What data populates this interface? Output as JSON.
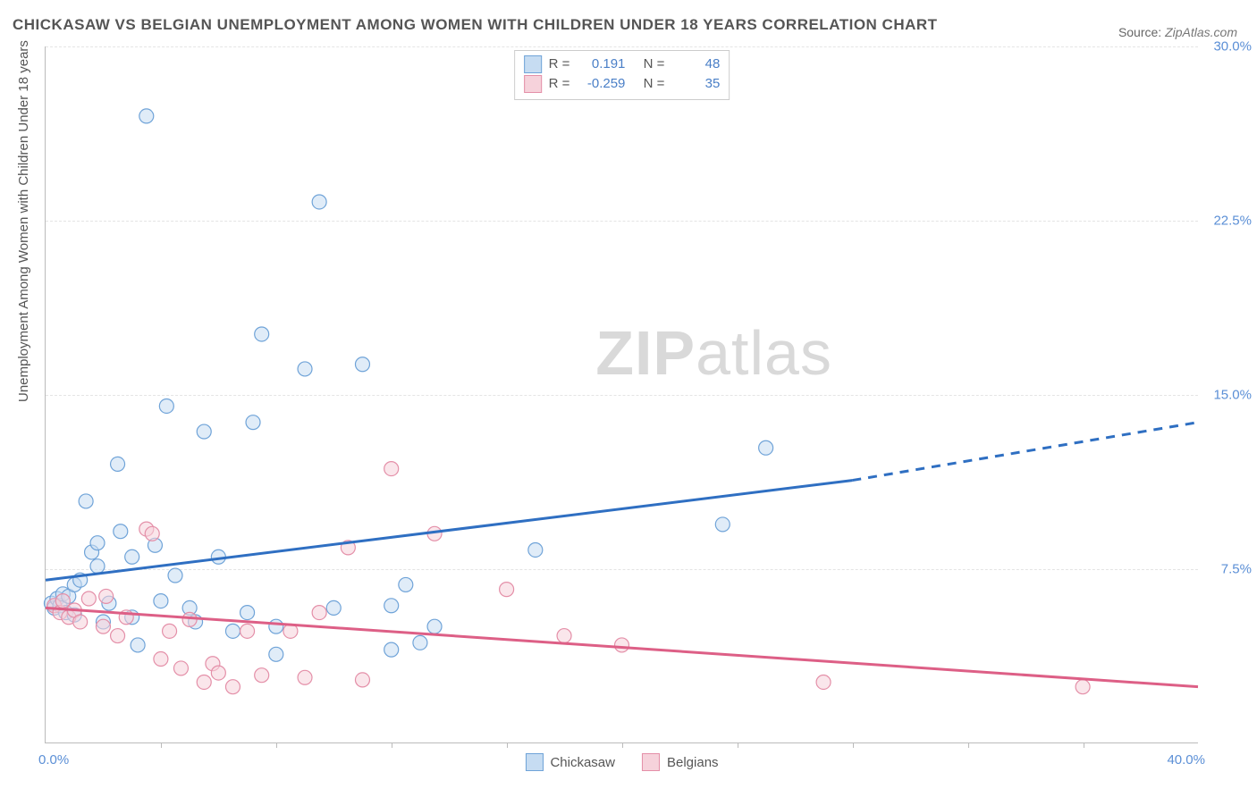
{
  "title": "CHICKASAW VS BELGIAN UNEMPLOYMENT AMONG WOMEN WITH CHILDREN UNDER 18 YEARS CORRELATION CHART",
  "source_label": "Source:",
  "source_value": "ZipAtlas.com",
  "ylabel": "Unemployment Among Women with Children Under 18 years",
  "watermark_bold": "ZIP",
  "watermark_light": "atlas",
  "chart": {
    "type": "scatter",
    "xlim": [
      0,
      40
    ],
    "ylim": [
      0,
      30
    ],
    "x_tick_label_min": "0.0%",
    "x_tick_label_max": "40.0%",
    "x_minor_ticks": [
      4,
      8,
      12,
      16,
      20,
      24,
      28,
      32,
      36
    ],
    "y_ticks": [
      {
        "v": 7.5,
        "label": "7.5%"
      },
      {
        "v": 15.0,
        "label": "15.0%"
      },
      {
        "v": 22.5,
        "label": "22.5%"
      },
      {
        "v": 30.0,
        "label": "30.0%"
      }
    ],
    "background_color": "#ffffff",
    "grid_color": "#e4e4e4",
    "axis_color": "#bbbbbb",
    "tick_label_color": "#5b8fd6",
    "marker_radius": 8,
    "marker_stroke_width": 1.2,
    "marker_fill_opacity": 0.55,
    "series": [
      {
        "name": "Chickasaw",
        "fill": "#c6dcf2",
        "stroke": "#6fa3d8",
        "trend_color": "#2f6fc2",
        "trend_width": 3,
        "trend": {
          "x1": 0,
          "y1": 7.0,
          "x2": 28,
          "y2": 11.3,
          "x3": 40,
          "y3": 13.8
        },
        "R": "0.191",
        "N": "48",
        "points": [
          [
            0.2,
            6.0
          ],
          [
            0.3,
            5.8
          ],
          [
            0.4,
            6.2
          ],
          [
            0.5,
            5.9
          ],
          [
            0.6,
            6.4
          ],
          [
            0.7,
            5.6
          ],
          [
            0.8,
            6.3
          ],
          [
            1.0,
            6.8
          ],
          [
            1.0,
            5.5
          ],
          [
            1.2,
            7.0
          ],
          [
            1.4,
            10.4
          ],
          [
            1.6,
            8.2
          ],
          [
            1.8,
            7.6
          ],
          [
            1.8,
            8.6
          ],
          [
            2.0,
            5.2
          ],
          [
            2.2,
            6.0
          ],
          [
            2.5,
            12.0
          ],
          [
            2.6,
            9.1
          ],
          [
            3.0,
            8.0
          ],
          [
            3.0,
            5.4
          ],
          [
            3.2,
            4.2
          ],
          [
            3.5,
            27.0
          ],
          [
            3.8,
            8.5
          ],
          [
            4.0,
            6.1
          ],
          [
            4.2,
            14.5
          ],
          [
            4.5,
            7.2
          ],
          [
            5.0,
            5.8
          ],
          [
            5.2,
            5.2
          ],
          [
            5.5,
            13.4
          ],
          [
            6.0,
            8.0
          ],
          [
            6.5,
            4.8
          ],
          [
            7.0,
            5.6
          ],
          [
            7.2,
            13.8
          ],
          [
            7.5,
            17.6
          ],
          [
            8.0,
            3.8
          ],
          [
            8.0,
            5.0
          ],
          [
            9.0,
            16.1
          ],
          [
            9.5,
            23.3
          ],
          [
            10.0,
            5.8
          ],
          [
            11.0,
            16.3
          ],
          [
            12.0,
            4.0
          ],
          [
            12.0,
            5.9
          ],
          [
            12.5,
            6.8
          ],
          [
            13.0,
            4.3
          ],
          [
            13.5,
            5.0
          ],
          [
            17.0,
            8.3
          ],
          [
            23.5,
            9.4
          ],
          [
            25.0,
            12.7
          ]
        ]
      },
      {
        "name": "Belgians",
        "fill": "#f6d2db",
        "stroke": "#e48fa8",
        "trend_color": "#dd5f86",
        "trend_width": 3,
        "trend": {
          "x1": 0,
          "y1": 5.8,
          "x2": 40,
          "y2": 2.4
        },
        "R": "-0.259",
        "N": "35",
        "points": [
          [
            0.3,
            5.9
          ],
          [
            0.5,
            5.6
          ],
          [
            0.6,
            6.1
          ],
          [
            0.8,
            5.4
          ],
          [
            1.0,
            5.7
          ],
          [
            1.2,
            5.2
          ],
          [
            1.5,
            6.2
          ],
          [
            2.0,
            5.0
          ],
          [
            2.1,
            6.3
          ],
          [
            2.5,
            4.6
          ],
          [
            2.8,
            5.4
          ],
          [
            3.5,
            9.2
          ],
          [
            3.7,
            9.0
          ],
          [
            4.0,
            3.6
          ],
          [
            4.3,
            4.8
          ],
          [
            4.7,
            3.2
          ],
          [
            5.0,
            5.3
          ],
          [
            5.5,
            2.6
          ],
          [
            5.8,
            3.4
          ],
          [
            6.0,
            3.0
          ],
          [
            6.5,
            2.4
          ],
          [
            7.0,
            4.8
          ],
          [
            7.5,
            2.9
          ],
          [
            8.5,
            4.8
          ],
          [
            9.0,
            2.8
          ],
          [
            9.5,
            5.6
          ],
          [
            10.5,
            8.4
          ],
          [
            11.0,
            2.7
          ],
          [
            12.0,
            11.8
          ],
          [
            13.5,
            9.0
          ],
          [
            16.0,
            6.6
          ],
          [
            18.0,
            4.6
          ],
          [
            20.0,
            4.2
          ],
          [
            27.0,
            2.6
          ],
          [
            36.0,
            2.4
          ]
        ]
      }
    ],
    "statbox": {
      "R_label": "R  =",
      "N_label": "N  ="
    },
    "legend": [
      {
        "label": "Chickasaw",
        "swatch": "sw-blue"
      },
      {
        "label": "Belgians",
        "swatch": "sw-pink"
      }
    ]
  }
}
